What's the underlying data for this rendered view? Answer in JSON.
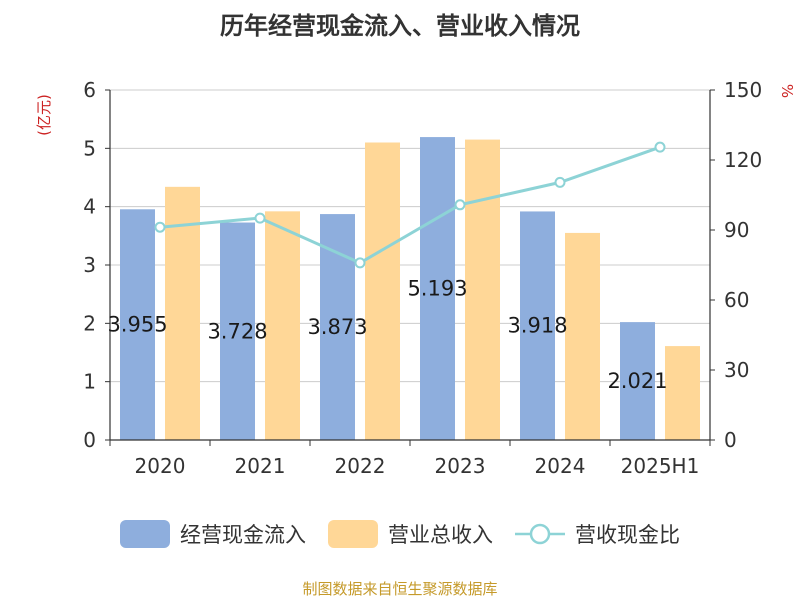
{
  "chart_data": {
    "type": "bar",
    "title": "历年经营现金流入、营业收入情况",
    "categories": [
      "2020",
      "2021",
      "2022",
      "2023",
      "2024",
      "2025H1"
    ],
    "ylabel": "(亿元)",
    "y2label": "%",
    "ylim": [
      0,
      6
    ],
    "y2lim": [
      0,
      150
    ],
    "yticks": [
      "0",
      "1",
      "2",
      "3",
      "4",
      "5",
      "6"
    ],
    "y2ticks": [
      "0",
      "30",
      "60",
      "90",
      "120",
      "150"
    ],
    "grid": true,
    "legend_position": "bottom",
    "series": [
      {
        "name": "经营现金流入",
        "type": "bar",
        "axis": "left",
        "values": [
          3.955,
          3.728,
          3.873,
          5.193,
          3.918,
          2.021
        ],
        "labels": [
          "3.955",
          "3.728",
          "3.873",
          "5.193",
          "3.918",
          "2.021"
        ],
        "color": "#8eaedd"
      },
      {
        "name": "营业总收入",
        "type": "bar",
        "axis": "left",
        "values": [
          4.34,
          3.92,
          5.1,
          5.15,
          3.55,
          1.61
        ],
        "color": "#ffd797"
      },
      {
        "name": "营收现金比",
        "type": "line",
        "axis": "right",
        "values": [
          91.2,
          95.1,
          75.9,
          100.8,
          110.4,
          125.5
        ],
        "color": "#8dd3d6"
      }
    ]
  },
  "footer": {
    "source": "制图数据来自恒生聚源数据库"
  }
}
